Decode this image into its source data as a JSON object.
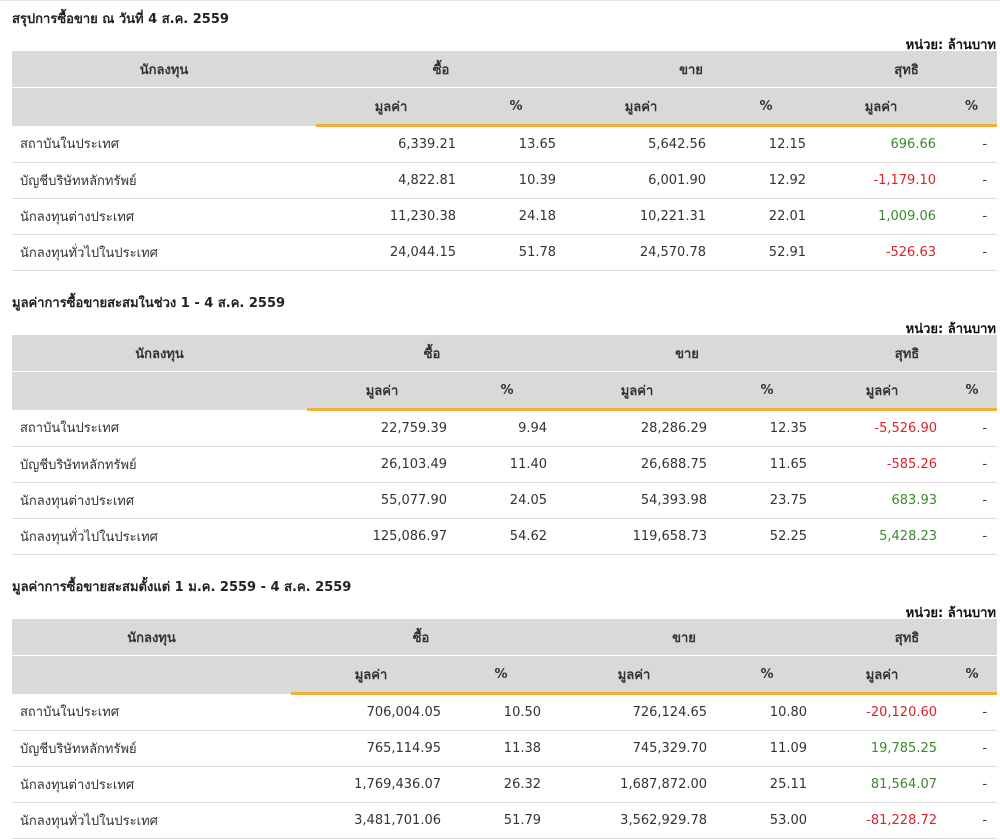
{
  "colors": {
    "positive": "#3a8a2a",
    "negative": "#d8232a",
    "accent": "#f0b23a",
    "header_bg": "#d9d9d9"
  },
  "headers": {
    "investor": "นักลงทุน",
    "buy": "ซื้อ",
    "sell": "ขาย",
    "net": "สุทธิ",
    "value": "มูลค่า",
    "pct": "%"
  },
  "sections": [
    {
      "title": "สรุปการซื้อขาย ณ วันที่ 4 ส.ค. 2559",
      "unit": "หน่วย: ล้านบาท",
      "rows": [
        {
          "name": "สถาบันในประเทศ",
          "buy": "6,339.21",
          "buy_pct": "13.65",
          "sell": "5,642.56",
          "sell_pct": "12.15",
          "net": "696.66",
          "net_sign": "pos",
          "net_pct": "-"
        },
        {
          "name": "บัญชีบริษัทหลักทรัพย์",
          "buy": "4,822.81",
          "buy_pct": "10.39",
          "sell": "6,001.90",
          "sell_pct": "12.92",
          "net": "-1,179.10",
          "net_sign": "neg",
          "net_pct": "-"
        },
        {
          "name": "นักลงทุนต่างประเทศ",
          "buy": "11,230.38",
          "buy_pct": "24.18",
          "sell": "10,221.31",
          "sell_pct": "22.01",
          "net": "1,009.06",
          "net_sign": "pos",
          "net_pct": "-"
        },
        {
          "name": "นักลงทุนทั่วไปในประเทศ",
          "buy": "24,044.15",
          "buy_pct": "51.78",
          "sell": "24,570.78",
          "sell_pct": "52.91",
          "net": "-526.63",
          "net_sign": "neg",
          "net_pct": "-"
        }
      ]
    },
    {
      "title": "มูลค่าการซื้อขายสะสมในช่วง 1 - 4 ส.ค. 2559",
      "unit": "หน่วย: ล้านบาท",
      "rows": [
        {
          "name": "สถาบันในประเทศ",
          "buy": "22,759.39",
          "buy_pct": "9.94",
          "sell": "28,286.29",
          "sell_pct": "12.35",
          "net": "-5,526.90",
          "net_sign": "neg",
          "net_pct": "-"
        },
        {
          "name": "บัญชีบริษัทหลักทรัพย์",
          "buy": "26,103.49",
          "buy_pct": "11.40",
          "sell": "26,688.75",
          "sell_pct": "11.65",
          "net": "-585.26",
          "net_sign": "neg",
          "net_pct": "-"
        },
        {
          "name": "นักลงทุนต่างประเทศ",
          "buy": "55,077.90",
          "buy_pct": "24.05",
          "sell": "54,393.98",
          "sell_pct": "23.75",
          "net": "683.93",
          "net_sign": "pos",
          "net_pct": "-"
        },
        {
          "name": "นักลงทุนทั่วไปในประเทศ",
          "buy": "125,086.97",
          "buy_pct": "54.62",
          "sell": "119,658.73",
          "sell_pct": "52.25",
          "net": "5,428.23",
          "net_sign": "pos",
          "net_pct": "-"
        }
      ]
    },
    {
      "title": "มูลค่าการซื้อขายสะสมตั้งแต่ 1 ม.ค. 2559 - 4 ส.ค. 2559",
      "unit": "หน่วย: ล้านบาท",
      "rows": [
        {
          "name": "สถาบันในประเทศ",
          "buy": "706,004.05",
          "buy_pct": "10.50",
          "sell": "726,124.65",
          "sell_pct": "10.80",
          "net": "-20,120.60",
          "net_sign": "neg",
          "net_pct": "-"
        },
        {
          "name": "บัญชีบริษัทหลักทรัพย์",
          "buy": "765,114.95",
          "buy_pct": "11.38",
          "sell": "745,329.70",
          "sell_pct": "11.09",
          "net": "19,785.25",
          "net_sign": "pos",
          "net_pct": "-"
        },
        {
          "name": "นักลงทุนต่างประเทศ",
          "buy": "1,769,436.07",
          "buy_pct": "26.32",
          "sell": "1,687,872.00",
          "sell_pct": "25.11",
          "net": "81,564.07",
          "net_sign": "pos",
          "net_pct": "-"
        },
        {
          "name": "นักลงทุนทั่วไปในประเทศ",
          "buy": "3,481,701.06",
          "buy_pct": "51.79",
          "sell": "3,562,929.78",
          "sell_pct": "53.00",
          "net": "-81,228.72",
          "net_sign": "neg",
          "net_pct": "-"
        }
      ]
    }
  ]
}
